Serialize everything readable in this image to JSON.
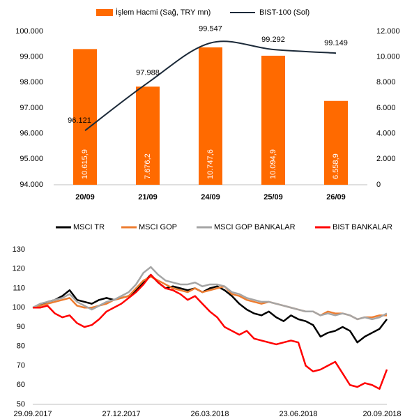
{
  "chart_data": [
    {
      "type": "combo",
      "categories": [
        "20/09",
        "21/09",
        "24/09",
        "25/09",
        "26/09"
      ],
      "series": [
        {
          "name": "İşlem Hacmi (Sağ, TRY mn)",
          "type": "bar",
          "axis": "y2",
          "color": "#ff6a00",
          "values": [
            10615.9,
            7676.2,
            10747.6,
            10094.9,
            6558.9
          ],
          "value_labels": [
            "10.615,9",
            "7.676,2",
            "10.747,6",
            "10.094,9",
            "6.558,9"
          ]
        },
        {
          "name": "BIST-100 (Sol)",
          "type": "line",
          "color": "#1c2a39",
          "values": [
            96121,
            97988,
            99547,
            99292,
            99149
          ],
          "value_labels": [
            "96.121",
            "97.988",
            "99.547",
            "99.292",
            "99.149"
          ]
        }
      ],
      "ylim": [
        94000,
        100000
      ],
      "yticks": [
        {
          "value": 94000,
          "label": "94.000"
        },
        {
          "value": 95000,
          "label": "95.000"
        },
        {
          "value": 96000,
          "label": "96.000"
        },
        {
          "value": 97000,
          "label": "97.000"
        },
        {
          "value": 98000,
          "label": "98.000"
        },
        {
          "value": 99000,
          "label": "99.000"
        },
        {
          "value": 100000,
          "label": "100.000"
        }
      ],
      "y2lim": [
        0,
        12000
      ],
      "y2ticks": [
        0,
        {
          "value": 2000,
          "label": "2.000"
        },
        {
          "value": 4000,
          "label": "4.000"
        },
        {
          "value": 6000,
          "label": "6.000"
        },
        {
          "value": 8000,
          "label": "8.000"
        },
        {
          "value": 10000,
          "label": "10.000"
        },
        {
          "value": 12000,
          "label": "12.000"
        }
      ]
    },
    {
      "type": "line",
      "categories": [
        "29.09.2017",
        null,
        null,
        null,
        null,
        null,
        null,
        null,
        null,
        null,
        null,
        null,
        "27.12.2017",
        null,
        null,
        null,
        null,
        null,
        null,
        null,
        null,
        null,
        null,
        null,
        "26.03.2018",
        null,
        null,
        null,
        null,
        null,
        null,
        null,
        null,
        null,
        null,
        null,
        "23.06.2018",
        null,
        null,
        null,
        null,
        null,
        null,
        null,
        null,
        null,
        null,
        null,
        "20.09.2018"
      ],
      "series": [
        {
          "name": "MSCI TR",
          "color": "#000000",
          "values": [
            100,
            101,
            103,
            104,
            106,
            109,
            104,
            103,
            102,
            104,
            105,
            104,
            105,
            106,
            109,
            113,
            117,
            113,
            110,
            111,
            110,
            109,
            110,
            108,
            110,
            111,
            109,
            106,
            102,
            99,
            97,
            96,
            98,
            95,
            93,
            96,
            94,
            93,
            91,
            85,
            87,
            88,
            90,
            88,
            82,
            85,
            87,
            89,
            94
          ]
        },
        {
          "name": "MSCI GOP",
          "color": "#ed7d31",
          "values": [
            100,
            101,
            102,
            103,
            104,
            105,
            101,
            100,
            100,
            101,
            102,
            104,
            105,
            106,
            110,
            114,
            116,
            114,
            112,
            110,
            109,
            108,
            110,
            108,
            109,
            110,
            111,
            107,
            106,
            104,
            103,
            102,
            103,
            102,
            101,
            100,
            99,
            98,
            98,
            96,
            98,
            97,
            97,
            96,
            94,
            95,
            95,
            96,
            96
          ]
        },
        {
          "name": "MSCI GOP BANKALAR",
          "color": "#a5a5a5",
          "values": [
            100,
            102,
            103,
            104,
            105,
            107,
            103,
            101,
            99,
            101,
            103,
            104,
            106,
            108,
            112,
            118,
            121,
            117,
            114,
            113,
            112,
            112,
            113,
            111,
            112,
            112,
            111,
            108,
            107,
            105,
            104,
            103,
            103,
            102,
            101,
            100,
            99,
            98,
            98,
            96,
            97,
            96,
            97,
            96,
            94,
            95,
            94,
            95,
            97
          ]
        },
        {
          "name": "BIST BANKALAR",
          "color": "#ff0000",
          "values": [
            100,
            100,
            101,
            97,
            95,
            96,
            92,
            90,
            91,
            94,
            98,
            100,
            102,
            105,
            108,
            112,
            117,
            113,
            110,
            109,
            107,
            104,
            106,
            102,
            98,
            95,
            90,
            88,
            86,
            88,
            84,
            83,
            82,
            81,
            82,
            83,
            82,
            70,
            67,
            68,
            70,
            72,
            66,
            60,
            59,
            61,
            60,
            58,
            68
          ]
        }
      ],
      "ylim": [
        50,
        130
      ],
      "yticks": [
        50,
        60,
        70,
        80,
        90,
        100,
        110,
        120,
        130
      ]
    }
  ]
}
